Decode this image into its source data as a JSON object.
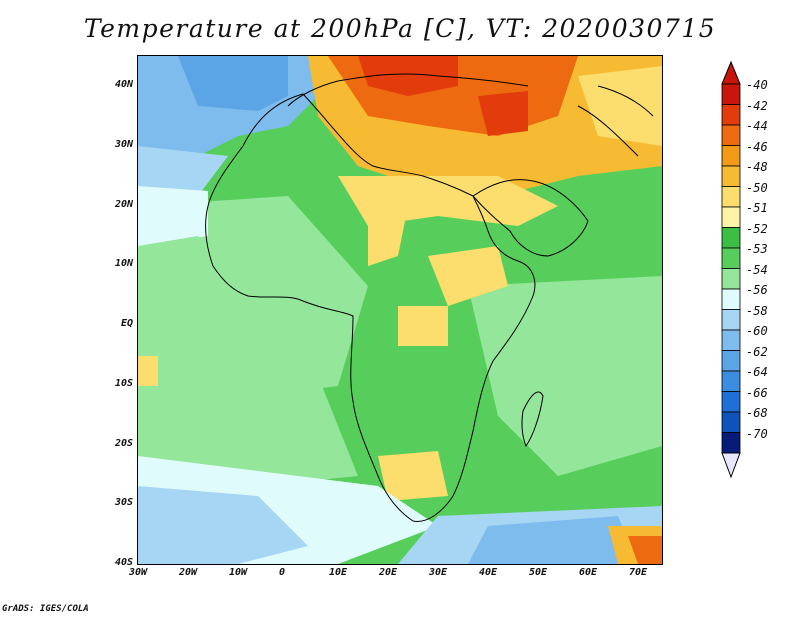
{
  "title": "Temperature at 200hPa [C], VT: 2020030715",
  "credit": "GrADS: IGES/COLA",
  "map": {
    "projection": "lat-lon",
    "lon_range": [
      -30,
      75
    ],
    "lat_range": [
      -40,
      45
    ],
    "lat_ticks": [
      "40N",
      "30N",
      "20N",
      "10N",
      "EQ",
      "10S",
      "20S",
      "30S",
      "40S"
    ],
    "lon_ticks": [
      "30W",
      "20W",
      "10W",
      "0",
      "10E",
      "20E",
      "30E",
      "40E",
      "50E",
      "60E",
      "70E"
    ]
  },
  "colorbar": {
    "labels": [
      "-40",
      "-42",
      "-44",
      "-46",
      "-48",
      "-50",
      "-51",
      "-52",
      "-53",
      "-54",
      "-56",
      "-58",
      "-60",
      "-62",
      "-64",
      "-66",
      "-68",
      "-70"
    ],
    "colors": [
      "#c8160d",
      "#e23c0c",
      "#ee6a11",
      "#f29a17",
      "#f6bb33",
      "#fbde6e",
      "#fdf4a8",
      "#3cbd44",
      "#57ce5b",
      "#93e69a",
      "#e0fbfc",
      "#a7d6f4",
      "#7fbcee",
      "#5ba5e6",
      "#3c8ddf",
      "#1e6fd6",
      "#0f52ba",
      "#071b79"
    ]
  }
}
